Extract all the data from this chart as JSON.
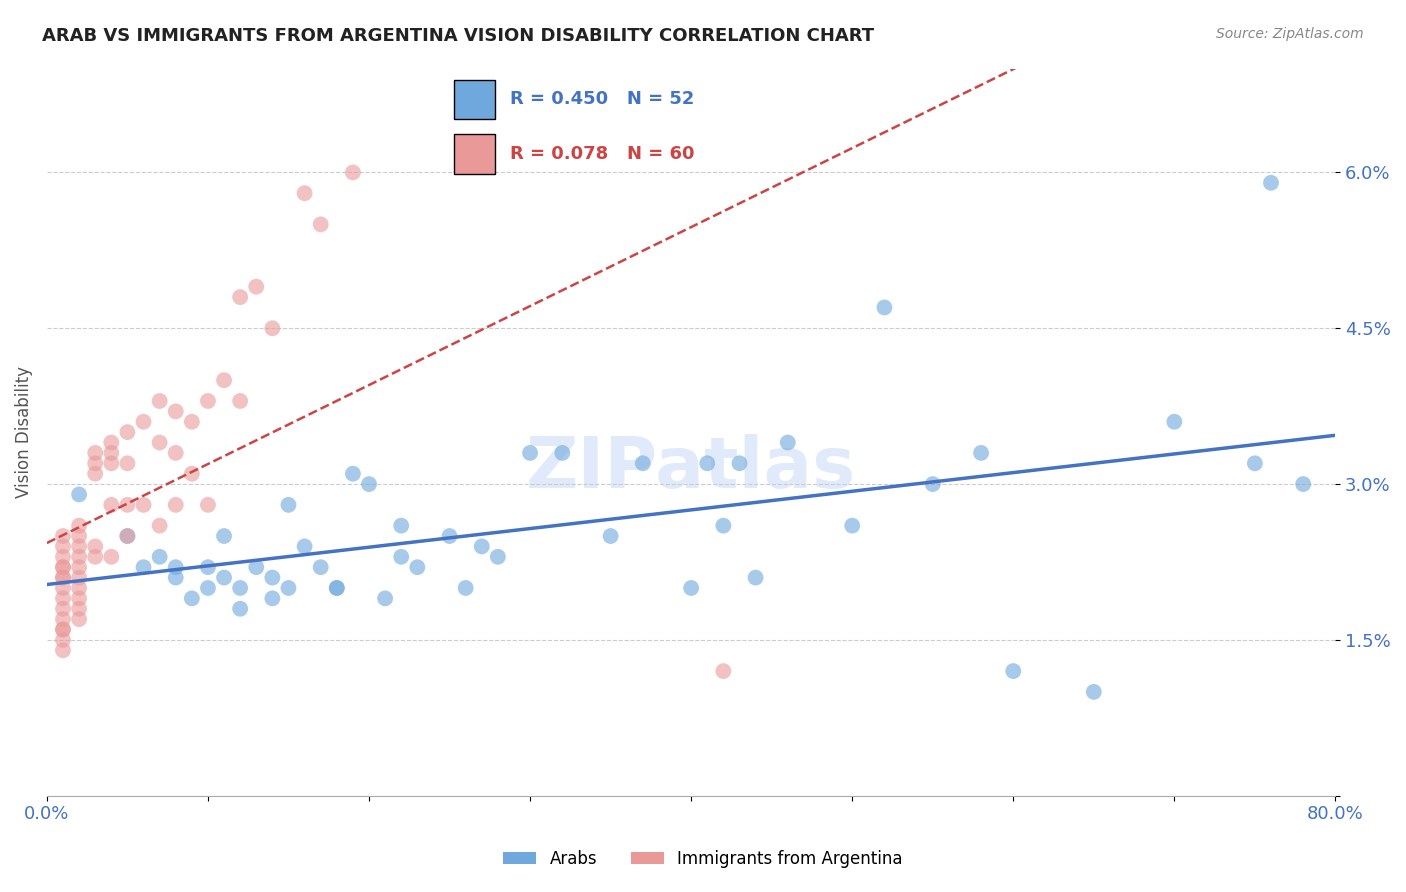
{
  "title": "ARAB VS IMMIGRANTS FROM ARGENTINA VISION DISABILITY CORRELATION CHART",
  "source": "Source: ZipAtlas.com",
  "ylabel": "Vision Disability",
  "legend_labels": [
    "Arabs",
    "Immigrants from Argentina"
  ],
  "series1_label": "R = 0.450   N = 52",
  "series2_label": "R = 0.078   N = 60",
  "color_blue": "#6fa8dc",
  "color_pink": "#ea9999",
  "color_blue_line": "#4472c4",
  "color_pink_line": "#cc4444",
  "color_axis_labels": "#4472c4",
  "xlim": [
    0.0,
    0.8
  ],
  "ylim": [
    0.0,
    0.07
  ],
  "watermark": "ZIPatlas",
  "blue_x": [
    0.02,
    0.05,
    0.06,
    0.07,
    0.08,
    0.08,
    0.09,
    0.1,
    0.1,
    0.11,
    0.11,
    0.12,
    0.12,
    0.13,
    0.14,
    0.14,
    0.15,
    0.15,
    0.16,
    0.17,
    0.18,
    0.18,
    0.19,
    0.2,
    0.21,
    0.22,
    0.22,
    0.23,
    0.25,
    0.26,
    0.27,
    0.28,
    0.3,
    0.32,
    0.35,
    0.37,
    0.4,
    0.41,
    0.42,
    0.43,
    0.44,
    0.46,
    0.5,
    0.52,
    0.55,
    0.58,
    0.6,
    0.65,
    0.7,
    0.75,
    0.76,
    0.78
  ],
  "blue_y": [
    0.029,
    0.025,
    0.022,
    0.023,
    0.022,
    0.021,
    0.019,
    0.022,
    0.02,
    0.021,
    0.025,
    0.018,
    0.02,
    0.022,
    0.019,
    0.021,
    0.02,
    0.028,
    0.024,
    0.022,
    0.02,
    0.02,
    0.031,
    0.03,
    0.019,
    0.026,
    0.023,
    0.022,
    0.025,
    0.02,
    0.024,
    0.023,
    0.033,
    0.033,
    0.025,
    0.032,
    0.02,
    0.032,
    0.026,
    0.032,
    0.021,
    0.034,
    0.026,
    0.047,
    0.03,
    0.033,
    0.012,
    0.01,
    0.036,
    0.032,
    0.059,
    0.03
  ],
  "pink_x": [
    0.01,
    0.01,
    0.01,
    0.01,
    0.01,
    0.01,
    0.01,
    0.01,
    0.01,
    0.01,
    0.01,
    0.01,
    0.01,
    0.01,
    0.01,
    0.02,
    0.02,
    0.02,
    0.02,
    0.02,
    0.02,
    0.02,
    0.02,
    0.02,
    0.02,
    0.03,
    0.03,
    0.03,
    0.03,
    0.03,
    0.04,
    0.04,
    0.04,
    0.04,
    0.04,
    0.05,
    0.05,
    0.05,
    0.05,
    0.06,
    0.06,
    0.07,
    0.07,
    0.07,
    0.08,
    0.08,
    0.08,
    0.09,
    0.09,
    0.1,
    0.1,
    0.11,
    0.12,
    0.12,
    0.13,
    0.14,
    0.16,
    0.17,
    0.19,
    0.42
  ],
  "pink_y": [
    0.025,
    0.024,
    0.023,
    0.022,
    0.022,
    0.021,
    0.021,
    0.02,
    0.019,
    0.018,
    0.017,
    0.016,
    0.016,
    0.015,
    0.014,
    0.026,
    0.025,
    0.024,
    0.023,
    0.022,
    0.021,
    0.02,
    0.019,
    0.018,
    0.017,
    0.033,
    0.032,
    0.031,
    0.024,
    0.023,
    0.034,
    0.033,
    0.032,
    0.028,
    0.023,
    0.035,
    0.032,
    0.028,
    0.025,
    0.036,
    0.028,
    0.038,
    0.034,
    0.026,
    0.037,
    0.033,
    0.028,
    0.036,
    0.031,
    0.038,
    0.028,
    0.04,
    0.048,
    0.038,
    0.049,
    0.045,
    0.058,
    0.055,
    0.06,
    0.012
  ]
}
